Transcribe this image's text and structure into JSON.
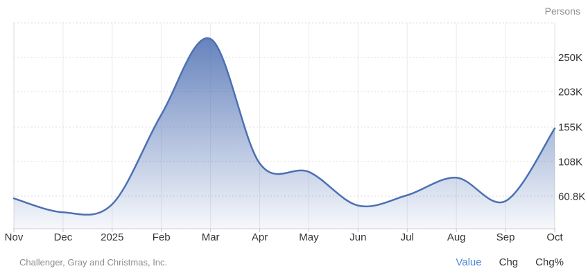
{
  "header": {
    "unit_label": "Persons"
  },
  "footer": {
    "source": "Challenger, Gray and Christmas, Inc.",
    "links": [
      {
        "label": "Value",
        "active": true
      },
      {
        "label": "Chg",
        "active": false
      },
      {
        "label": "Chg%",
        "active": false
      }
    ]
  },
  "colors": {
    "line": "#4c70b2",
    "fill_top": "rgba(77,111,179,0.92)",
    "fill_bottom": "rgba(77,111,179,0.05)",
    "grid_vertical": "#ebebeb",
    "plot_border": "#dcdcdc",
    "grid_horizontal_dotted": "#d9d9d9",
    "axis_line": "#cccccc",
    "tick_mark": "#c6c6c6",
    "tick_label": "#333333",
    "unit_label": "#8f8f8f",
    "source_text": "#8c8c8c",
    "link_active": "#4f8ad6",
    "link_inactive": "#333333"
  },
  "chart_data": {
    "type": "area",
    "title": "",
    "xlabel": "",
    "ylabel": "Persons",
    "smooth": true,
    "grid": true,
    "legend_position": "none",
    "categories": [
      "Nov",
      "Dec",
      "2025",
      "Feb",
      "Mar",
      "Apr",
      "May",
      "Jun",
      "Jul",
      "Aug",
      "Sep",
      "Oct"
    ],
    "values": [
      57700,
      38800,
      49800,
      172000,
      275200,
      105400,
      93800,
      48000,
      62100,
      86000,
      54100,
      153100
    ],
    "y_ticks": [
      {
        "value": 60800,
        "label": "60.8K"
      },
      {
        "value": 108000,
        "label": "108K"
      },
      {
        "value": 155000,
        "label": "155K"
      },
      {
        "value": 203000,
        "label": "203K"
      },
      {
        "value": 250000,
        "label": "250K"
      }
    ],
    "ylim": [
      16400,
      297000
    ]
  }
}
